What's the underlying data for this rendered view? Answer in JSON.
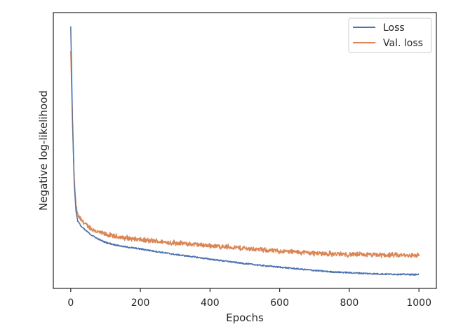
{
  "chart_data": {
    "type": "line",
    "title": "",
    "xlabel": "Epochs",
    "ylabel": "Negative log-likelihood",
    "xlim": [
      -50,
      1050
    ],
    "ylim": [
      0,
      1
    ],
    "x_ticks": [
      0,
      200,
      400,
      600,
      800,
      1000
    ],
    "y_ticks_shown": false,
    "grid": false,
    "legend_position": "top-right",
    "series": [
      {
        "name": "Loss",
        "color": "#4c72b0",
        "points": [
          [
            0,
            0.95
          ],
          [
            5,
            0.62
          ],
          [
            10,
            0.38
          ],
          [
            15,
            0.28
          ],
          [
            20,
            0.245
          ],
          [
            30,
            0.225
          ],
          [
            40,
            0.213
          ],
          [
            50,
            0.203
          ],
          [
            60,
            0.193
          ],
          [
            80,
            0.178
          ],
          [
            100,
            0.167
          ],
          [
            120,
            0.16
          ],
          [
            150,
            0.152
          ],
          [
            200,
            0.143
          ],
          [
            250,
            0.133
          ],
          [
            300,
            0.123
          ],
          [
            350,
            0.115
          ],
          [
            400,
            0.106
          ],
          [
            450,
            0.098
          ],
          [
            500,
            0.09
          ],
          [
            550,
            0.083
          ],
          [
            600,
            0.077
          ],
          [
            650,
            0.071
          ],
          [
            700,
            0.065
          ],
          [
            750,
            0.06
          ],
          [
            800,
            0.057
          ],
          [
            850,
            0.054
          ],
          [
            900,
            0.052
          ],
          [
            950,
            0.051
          ],
          [
            1000,
            0.05
          ]
        ]
      },
      {
        "name": "Val. loss",
        "color": "#dd8452",
        "points": [
          [
            0,
            0.86
          ],
          [
            5,
            0.6
          ],
          [
            10,
            0.4
          ],
          [
            15,
            0.3
          ],
          [
            20,
            0.265
          ],
          [
            30,
            0.248
          ],
          [
            40,
            0.235
          ],
          [
            50,
            0.225
          ],
          [
            60,
            0.215
          ],
          [
            80,
            0.204
          ],
          [
            100,
            0.196
          ],
          [
            120,
            0.19
          ],
          [
            150,
            0.184
          ],
          [
            200,
            0.176
          ],
          [
            250,
            0.17
          ],
          [
            300,
            0.165
          ],
          [
            350,
            0.16
          ],
          [
            400,
            0.155
          ],
          [
            450,
            0.15
          ],
          [
            500,
            0.145
          ],
          [
            550,
            0.14
          ],
          [
            600,
            0.135
          ],
          [
            650,
            0.132
          ],
          [
            700,
            0.128
          ],
          [
            750,
            0.125
          ],
          [
            800,
            0.123
          ],
          [
            850,
            0.122
          ],
          [
            900,
            0.121
          ],
          [
            950,
            0.12
          ],
          [
            1000,
            0.12
          ]
        ]
      }
    ]
  }
}
